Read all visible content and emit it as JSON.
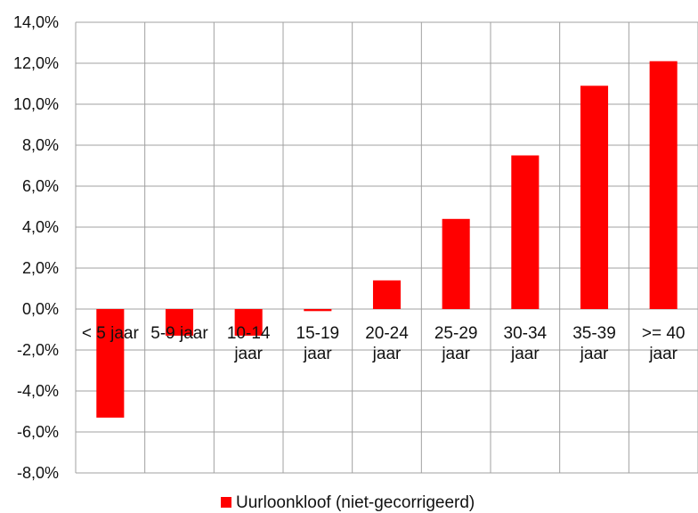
{
  "chart_data": {
    "type": "bar",
    "categories": [
      "< 5 jaar",
      "5-9 jaar",
      "10-14 jaar",
      "15-19 jaar",
      "20-24 jaar",
      "25-29 jaar",
      "30-34 jaar",
      "35-39 jaar",
      ">= 40 jaar"
    ],
    "category_lines": [
      [
        "< 5 jaar"
      ],
      [
        "5-9 jaar"
      ],
      [
        "10-14",
        "jaar"
      ],
      [
        "15-19",
        "jaar"
      ],
      [
        "20-24",
        "jaar"
      ],
      [
        "25-29",
        "jaar"
      ],
      [
        "30-34",
        "jaar"
      ],
      [
        "35-39",
        "jaar"
      ],
      [
        ">= 40",
        "jaar"
      ]
    ],
    "series": [
      {
        "name": "Uurloonkloof (niet-gecorrigeerd)",
        "values": [
          -5.3,
          -1.3,
          -1.3,
          -0.1,
          1.4,
          4.4,
          7.5,
          10.9,
          12.1
        ],
        "color": "#ff0000"
      }
    ],
    "ylim": [
      -8,
      14
    ],
    "yticks": [
      "14,0%",
      "12,0%",
      "10,0%",
      "8,0%",
      "6,0%",
      "4,0%",
      "2,0%",
      "0,0%",
      "-2,0%",
      "-4,0%",
      "-6,0%",
      "-8,0%"
    ],
    "ytick_values": [
      14,
      12,
      10,
      8,
      6,
      4,
      2,
      0,
      -2,
      -4,
      -6,
      -8
    ],
    "grid": true,
    "legend": {
      "position": "bottom",
      "label": "Uurloonkloof (niet-gecorrigeerd)"
    },
    "colors": {
      "bar": "#ff0000",
      "grid": "#a0a0a0",
      "text": "#111111"
    }
  }
}
